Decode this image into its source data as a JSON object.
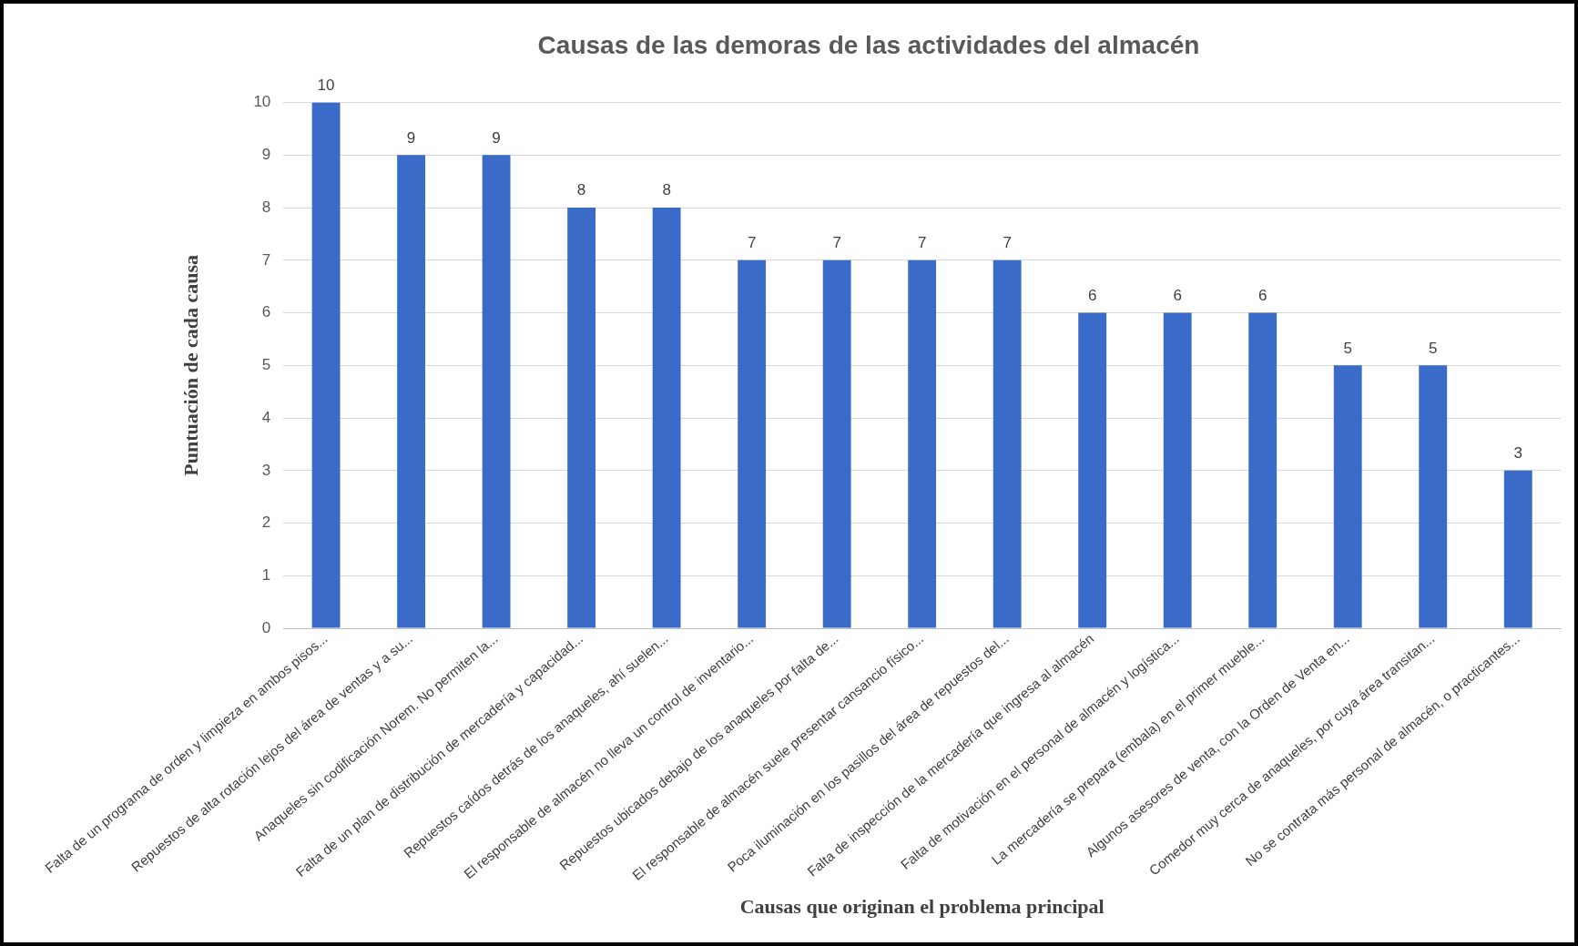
{
  "chart_data": {
    "type": "bar",
    "title": "Causas de las demoras de las actividades del almacén",
    "xlabel": "Causas que originan el problema principal",
    "ylabel": "Puntuación de cada causa",
    "categories": [
      "Falta de un programa de orden y limpieza en ambos pisos...",
      "Repuestos de alta rotación lejos del área de ventas y a su...",
      "Anaqueles sin codificación Norem. No permiten la...",
      "Falta de un plan de distribución de mercadería y capacidad...",
      "Repuestos caídos detrás de los anaqueles, ahí suelen...",
      "El responsable de almacén no lleva un control de inventario...",
      "Repuestos ubicados debajo de los anaqueles por falta de...",
      "El responsable de almacén suele presentar cansancio físico...",
      "Poca iluminación en los pasillos del área de repuestos del...",
      "Falta de inspección de la mercadería que ingresa al almacén",
      "Falta de motivación en el personal de almacén y logística...",
      "La mercadería se prepara (embala) en el primer mueble...",
      "Algunos asesores de venta, con la Orden de Venta en...",
      "Comedor muy cerca de anaqueles, por cuya área transitan...",
      "No se contrata más personal de almacén, o practicantes..."
    ],
    "values": [
      10,
      9,
      9,
      8,
      8,
      7,
      7,
      7,
      7,
      6,
      6,
      6,
      5,
      5,
      3
    ],
    "color": "#3a6bc8",
    "ylim": [
      0,
      10
    ],
    "yticks": [
      0,
      1,
      2,
      3,
      4,
      5,
      6,
      7,
      8,
      9,
      10
    ],
    "grid": "y",
    "data_labels": true,
    "legend": false
  }
}
